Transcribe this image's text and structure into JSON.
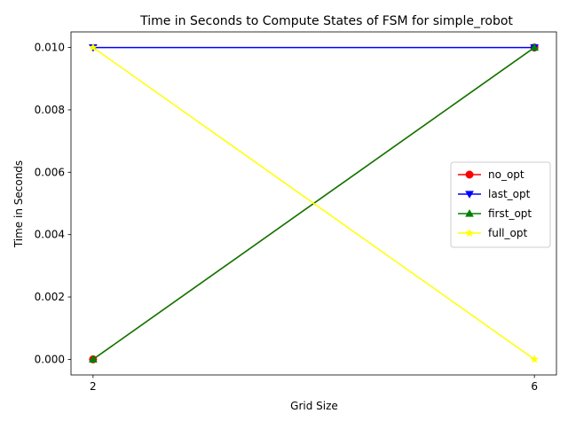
{
  "chart_data": {
    "type": "line",
    "title": "Time in Seconds to Compute States of FSM for simple_robot",
    "xlabel": "Grid Size",
    "ylabel": "Time in Seconds",
    "x": [
      2,
      6
    ],
    "x_ticks": [
      "2",
      "6"
    ],
    "y_ticks": [
      "0.000",
      "0.002",
      "0.004",
      "0.006",
      "0.008",
      "0.010"
    ],
    "y_tick_values": [
      0.0,
      0.002,
      0.004,
      0.006,
      0.008,
      0.01
    ],
    "xlim": [
      1.8,
      6.2
    ],
    "ylim": [
      -0.0005,
      0.0105
    ],
    "grid": false,
    "legend_position": "center-right",
    "series": [
      {
        "name": "no_opt",
        "values": [
          0.0,
          0.01
        ],
        "color": "#ff0000",
        "marker": "circle"
      },
      {
        "name": "last_opt",
        "values": [
          0.01,
          0.01
        ],
        "color": "#0000ff",
        "marker": "triangle-down"
      },
      {
        "name": "first_opt",
        "values": [
          0.0,
          0.01
        ],
        "color": "#008000",
        "marker": "triangle-up"
      },
      {
        "name": "full_opt",
        "values": [
          0.01,
          0.0
        ],
        "color": "#ffff00",
        "marker": "star"
      }
    ]
  }
}
